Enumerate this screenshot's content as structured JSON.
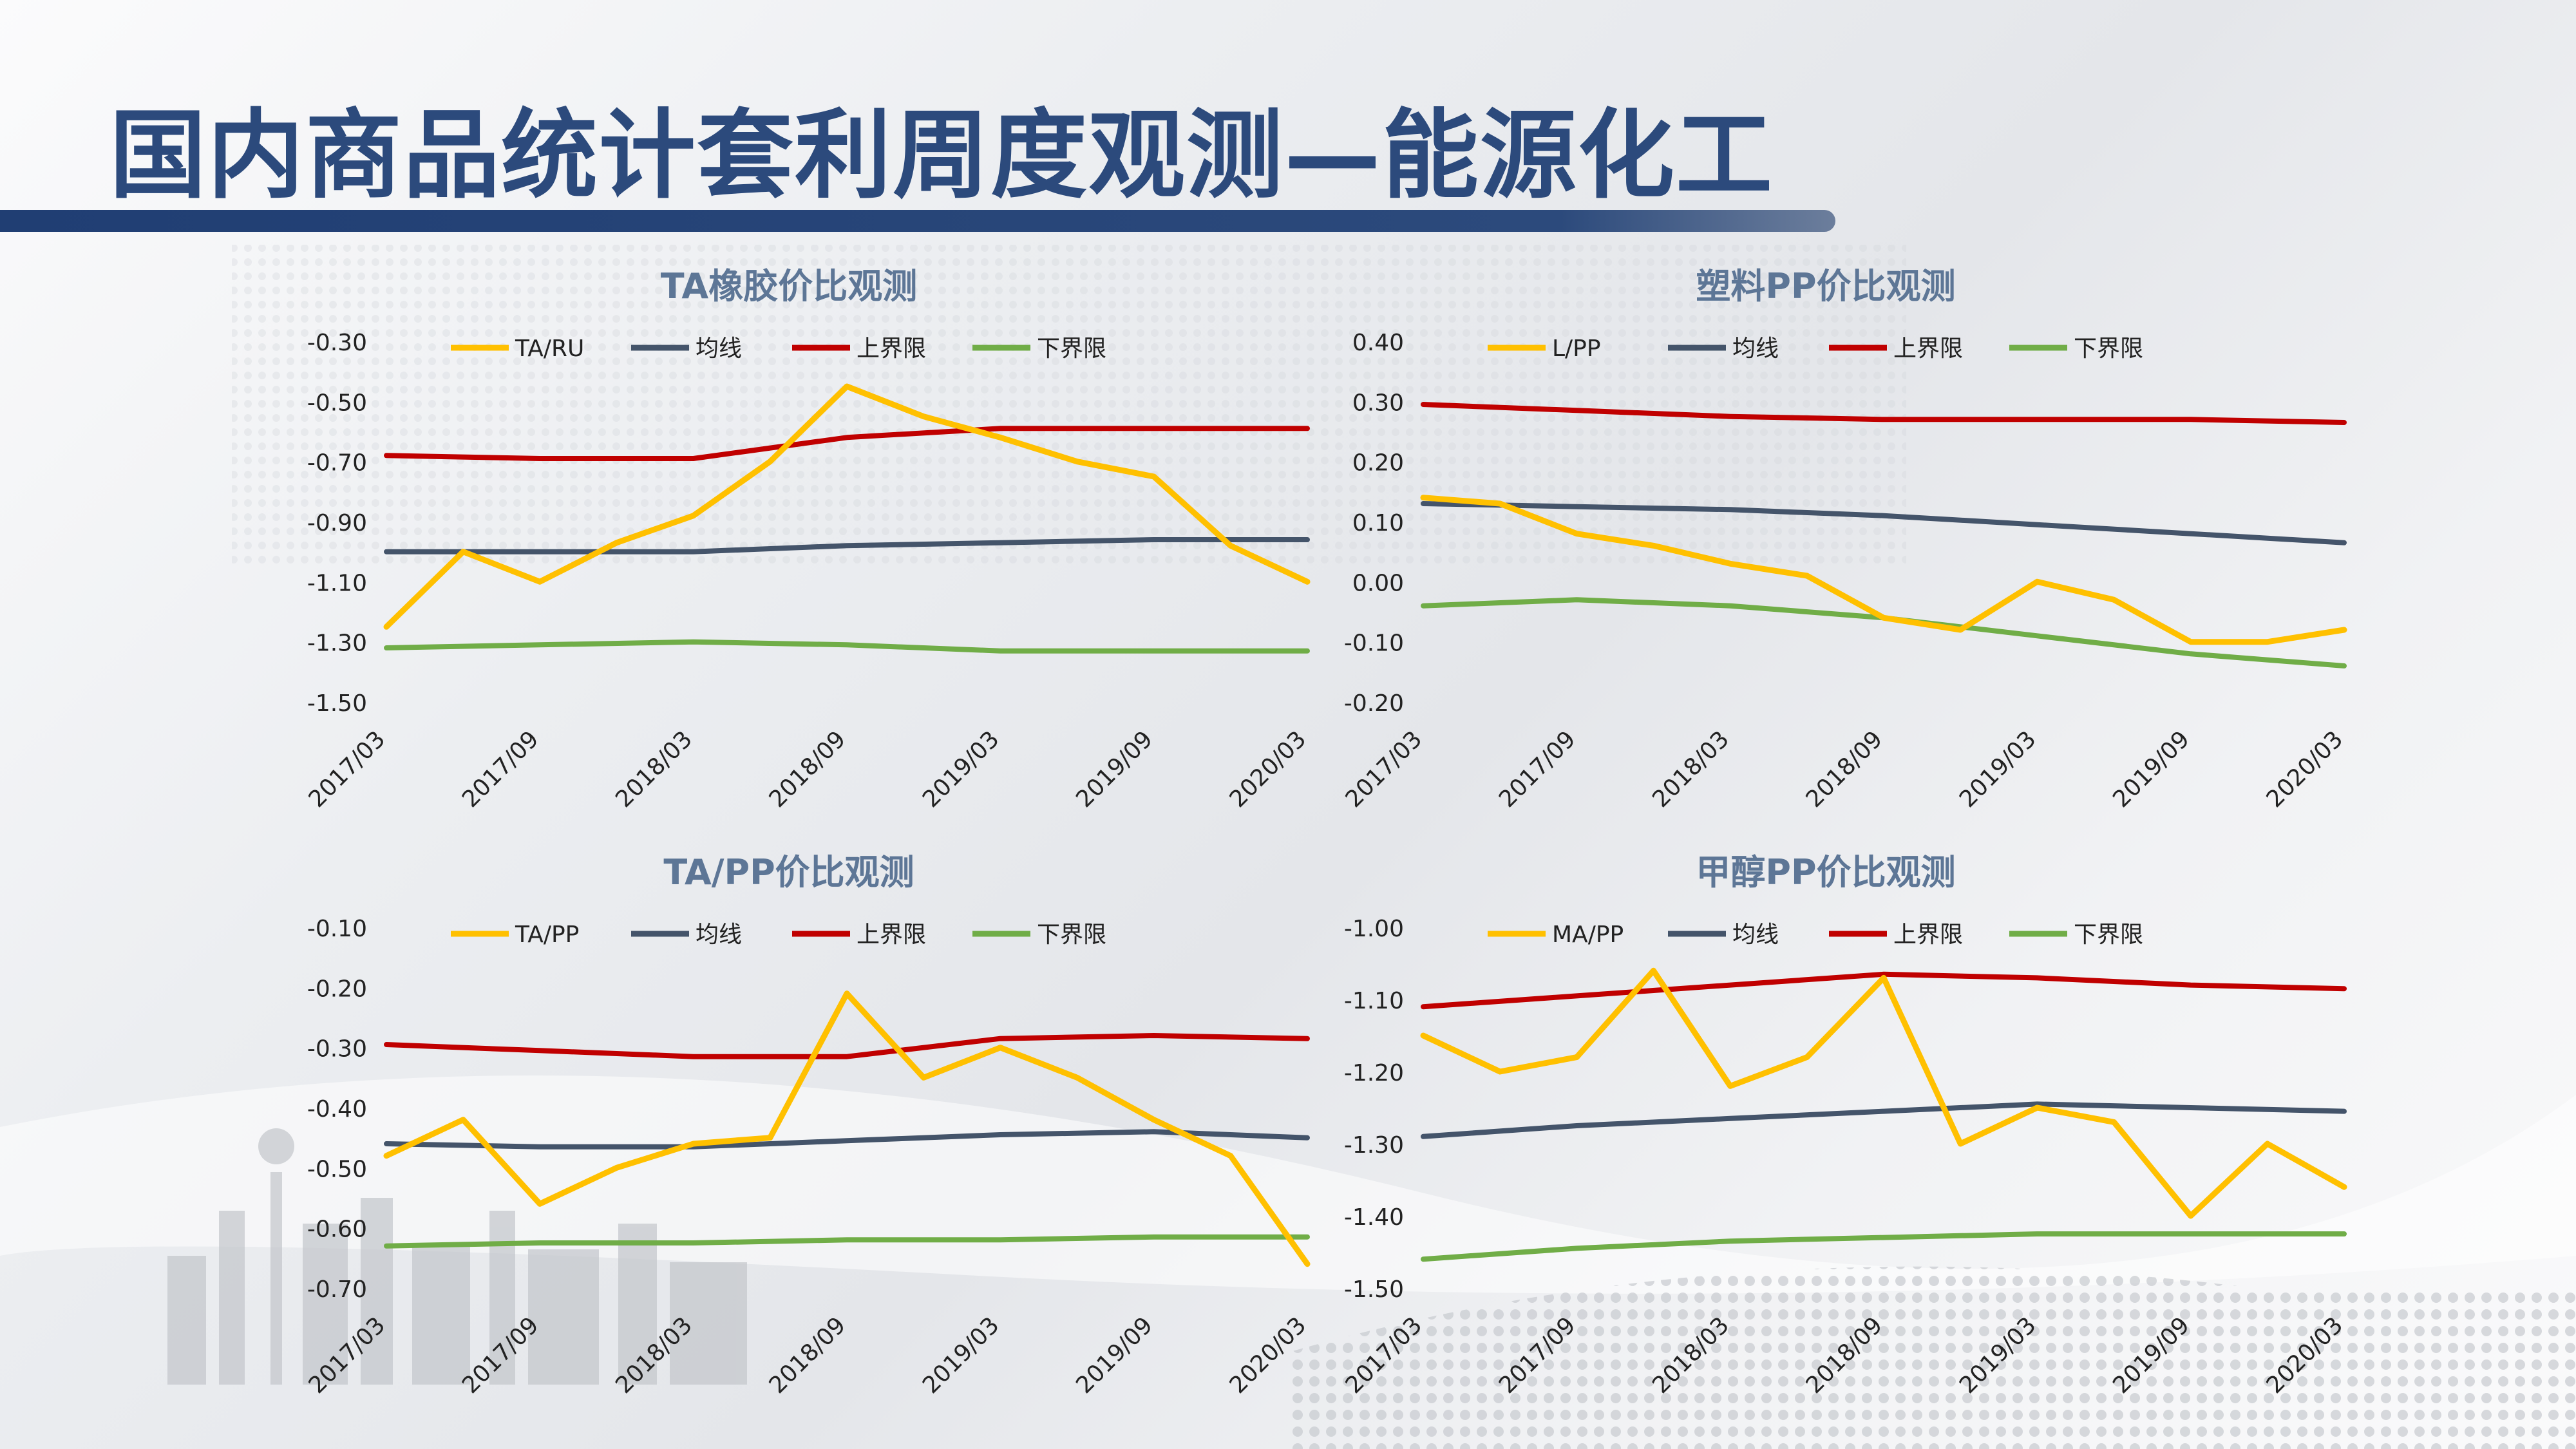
{
  "page": {
    "title": "国内商品统计套利周度观测—能源化工"
  },
  "chart_data": [
    {
      "type": "line",
      "title": "TA橡胶价比观测",
      "xlabel": "",
      "ylabel": "",
      "x_ticks": [
        "2017/03",
        "2017/09",
        "2018/03",
        "2018/09",
        "2019/03",
        "2019/09",
        "2020/03"
      ],
      "y_ticks": [
        "-0.30",
        "-0.50",
        "-0.70",
        "-0.90",
        "-1.10",
        "-1.30",
        "-1.50"
      ],
      "ylim": [
        -1.5,
        -0.3
      ],
      "legend_position": "top",
      "series": [
        {
          "name": "TA/RU",
          "color": "#ffc000",
          "x": [
            "2017/03",
            "2017/06",
            "2017/09",
            "2017/12",
            "2018/03",
            "2018/06",
            "2018/09",
            "2018/12",
            "2019/03",
            "2019/06",
            "2019/09",
            "2019/12",
            "2020/03"
          ],
          "values": [
            -1.25,
            -1.0,
            -1.1,
            -0.97,
            -0.88,
            -0.7,
            -0.45,
            -0.55,
            -0.62,
            -0.7,
            -0.75,
            -0.98,
            -1.1
          ]
        },
        {
          "name": "均线",
          "color": "#44546a",
          "x": [
            "2017/03",
            "2017/09",
            "2018/03",
            "2018/09",
            "2019/03",
            "2019/09",
            "2020/03"
          ],
          "values": [
            -1.0,
            -1.0,
            -1.0,
            -0.98,
            -0.97,
            -0.96,
            -0.96
          ]
        },
        {
          "name": "上界限",
          "color": "#c00000",
          "x": [
            "2017/03",
            "2017/09",
            "2018/03",
            "2018/09",
            "2019/03",
            "2019/09",
            "2020/03"
          ],
          "values": [
            -0.68,
            -0.69,
            -0.69,
            -0.62,
            -0.59,
            -0.59,
            -0.59
          ]
        },
        {
          "name": "下界限",
          "color": "#70ad47",
          "x": [
            "2017/03",
            "2017/09",
            "2018/03",
            "2018/09",
            "2019/03",
            "2019/09",
            "2020/03"
          ],
          "values": [
            -1.32,
            -1.31,
            -1.3,
            -1.31,
            -1.33,
            -1.33,
            -1.33
          ]
        }
      ]
    },
    {
      "type": "line",
      "title": "塑料PP价比观测",
      "xlabel": "",
      "ylabel": "",
      "x_ticks": [
        "2017/03",
        "2017/09",
        "2018/03",
        "2018/09",
        "2019/03",
        "2019/09",
        "2020/03"
      ],
      "y_ticks": [
        "0.40",
        "0.30",
        "0.20",
        "0.10",
        "0.00",
        "-0.10",
        "-0.20"
      ],
      "ylim": [
        -0.2,
        0.4
      ],
      "legend_position": "top",
      "series": [
        {
          "name": "L/PP",
          "color": "#ffc000",
          "x": [
            "2017/03",
            "2017/06",
            "2017/09",
            "2017/12",
            "2018/03",
            "2018/06",
            "2018/09",
            "2018/12",
            "2019/03",
            "2019/06",
            "2019/09",
            "2019/12",
            "2020/03"
          ],
          "values": [
            0.14,
            0.13,
            0.08,
            0.06,
            0.03,
            0.01,
            -0.06,
            -0.08,
            0.0,
            -0.03,
            -0.1,
            -0.1,
            -0.08
          ]
        },
        {
          "name": "均线",
          "color": "#44546a",
          "x": [
            "2017/03",
            "2017/09",
            "2018/03",
            "2018/09",
            "2019/03",
            "2019/09",
            "2020/03"
          ],
          "values": [
            0.13,
            0.125,
            0.12,
            0.11,
            0.095,
            0.08,
            0.065
          ]
        },
        {
          "name": "上界限",
          "color": "#c00000",
          "x": [
            "2017/03",
            "2017/09",
            "2018/03",
            "2018/09",
            "2019/03",
            "2019/09",
            "2020/03"
          ],
          "values": [
            0.295,
            0.285,
            0.275,
            0.27,
            0.27,
            0.27,
            0.265
          ]
        },
        {
          "name": "下界限",
          "color": "#70ad47",
          "x": [
            "2017/03",
            "2017/09",
            "2018/03",
            "2018/09",
            "2019/03",
            "2019/09",
            "2020/03"
          ],
          "values": [
            -0.04,
            -0.03,
            -0.04,
            -0.06,
            -0.09,
            -0.12,
            -0.14
          ]
        }
      ]
    },
    {
      "type": "line",
      "title": "TA/PP价比观测",
      "xlabel": "",
      "ylabel": "",
      "x_ticks": [
        "2017/03",
        "2017/09",
        "2018/03",
        "2018/09",
        "2019/03",
        "2019/09",
        "2020/03"
      ],
      "y_ticks": [
        "-0.10",
        "-0.20",
        "-0.30",
        "-0.40",
        "-0.50",
        "-0.60",
        "-0.70"
      ],
      "ylim": [
        -0.7,
        -0.1
      ],
      "legend_position": "top",
      "series": [
        {
          "name": "TA/PP",
          "color": "#ffc000",
          "x": [
            "2017/03",
            "2017/06",
            "2017/09",
            "2017/12",
            "2018/03",
            "2018/06",
            "2018/09",
            "2018/12",
            "2019/03",
            "2019/06",
            "2019/09",
            "2019/12",
            "2020/03"
          ],
          "values": [
            -0.48,
            -0.42,
            -0.56,
            -0.5,
            -0.46,
            -0.45,
            -0.21,
            -0.35,
            -0.3,
            -0.35,
            -0.42,
            -0.48,
            -0.66
          ]
        },
        {
          "name": "均线",
          "color": "#44546a",
          "x": [
            "2017/03",
            "2017/09",
            "2018/03",
            "2018/09",
            "2019/03",
            "2019/09",
            "2020/03"
          ],
          "values": [
            -0.46,
            -0.465,
            -0.465,
            -0.455,
            -0.445,
            -0.44,
            -0.45
          ]
        },
        {
          "name": "上界限",
          "color": "#c00000",
          "x": [
            "2017/03",
            "2017/09",
            "2018/03",
            "2018/09",
            "2019/03",
            "2019/09",
            "2020/03"
          ],
          "values": [
            -0.295,
            -0.305,
            -0.315,
            -0.315,
            -0.285,
            -0.28,
            -0.285
          ]
        },
        {
          "name": "下界限",
          "color": "#70ad47",
          "x": [
            "2017/03",
            "2017/09",
            "2018/03",
            "2018/09",
            "2019/03",
            "2019/09",
            "2020/03"
          ],
          "values": [
            -0.63,
            -0.625,
            -0.625,
            -0.62,
            -0.62,
            -0.615,
            -0.615
          ]
        }
      ]
    },
    {
      "type": "line",
      "title": "甲醇PP价比观测",
      "xlabel": "",
      "ylabel": "",
      "x_ticks": [
        "2017/03",
        "2017/09",
        "2018/03",
        "2018/09",
        "2019/03",
        "2019/09",
        "2020/03"
      ],
      "y_ticks": [
        "-1.00",
        "-1.10",
        "-1.20",
        "-1.30",
        "-1.40",
        "-1.50"
      ],
      "ylim": [
        -1.5,
        -1.0
      ],
      "legend_position": "top",
      "series": [
        {
          "name": "MA/PP",
          "color": "#ffc000",
          "x": [
            "2017/03",
            "2017/06",
            "2017/09",
            "2017/12",
            "2018/03",
            "2018/06",
            "2018/09",
            "2018/12",
            "2019/03",
            "2019/06",
            "2019/09",
            "2019/12",
            "2020/03"
          ],
          "values": [
            -1.15,
            -1.2,
            -1.18,
            -1.06,
            -1.22,
            -1.18,
            -1.07,
            -1.3,
            -1.25,
            -1.27,
            -1.4,
            -1.3,
            -1.36
          ]
        },
        {
          "name": "均线",
          "color": "#44546a",
          "x": [
            "2017/03",
            "2017/09",
            "2018/03",
            "2018/09",
            "2019/03",
            "2019/09",
            "2020/03"
          ],
          "values": [
            -1.29,
            -1.275,
            -1.265,
            -1.255,
            -1.245,
            -1.25,
            -1.255
          ]
        },
        {
          "name": "上界限",
          "color": "#c00000",
          "x": [
            "2017/03",
            "2017/09",
            "2018/03",
            "2018/09",
            "2019/03",
            "2019/09",
            "2020/03"
          ],
          "values": [
            -1.11,
            -1.095,
            -1.08,
            -1.065,
            -1.07,
            -1.08,
            -1.085
          ]
        },
        {
          "name": "下界限",
          "color": "#70ad47",
          "x": [
            "2017/03",
            "2017/09",
            "2018/03",
            "2018/09",
            "2019/03",
            "2019/09",
            "2020/03"
          ],
          "values": [
            -1.46,
            -1.445,
            -1.435,
            -1.43,
            -1.425,
            -1.425,
            -1.425
          ]
        }
      ]
    }
  ]
}
